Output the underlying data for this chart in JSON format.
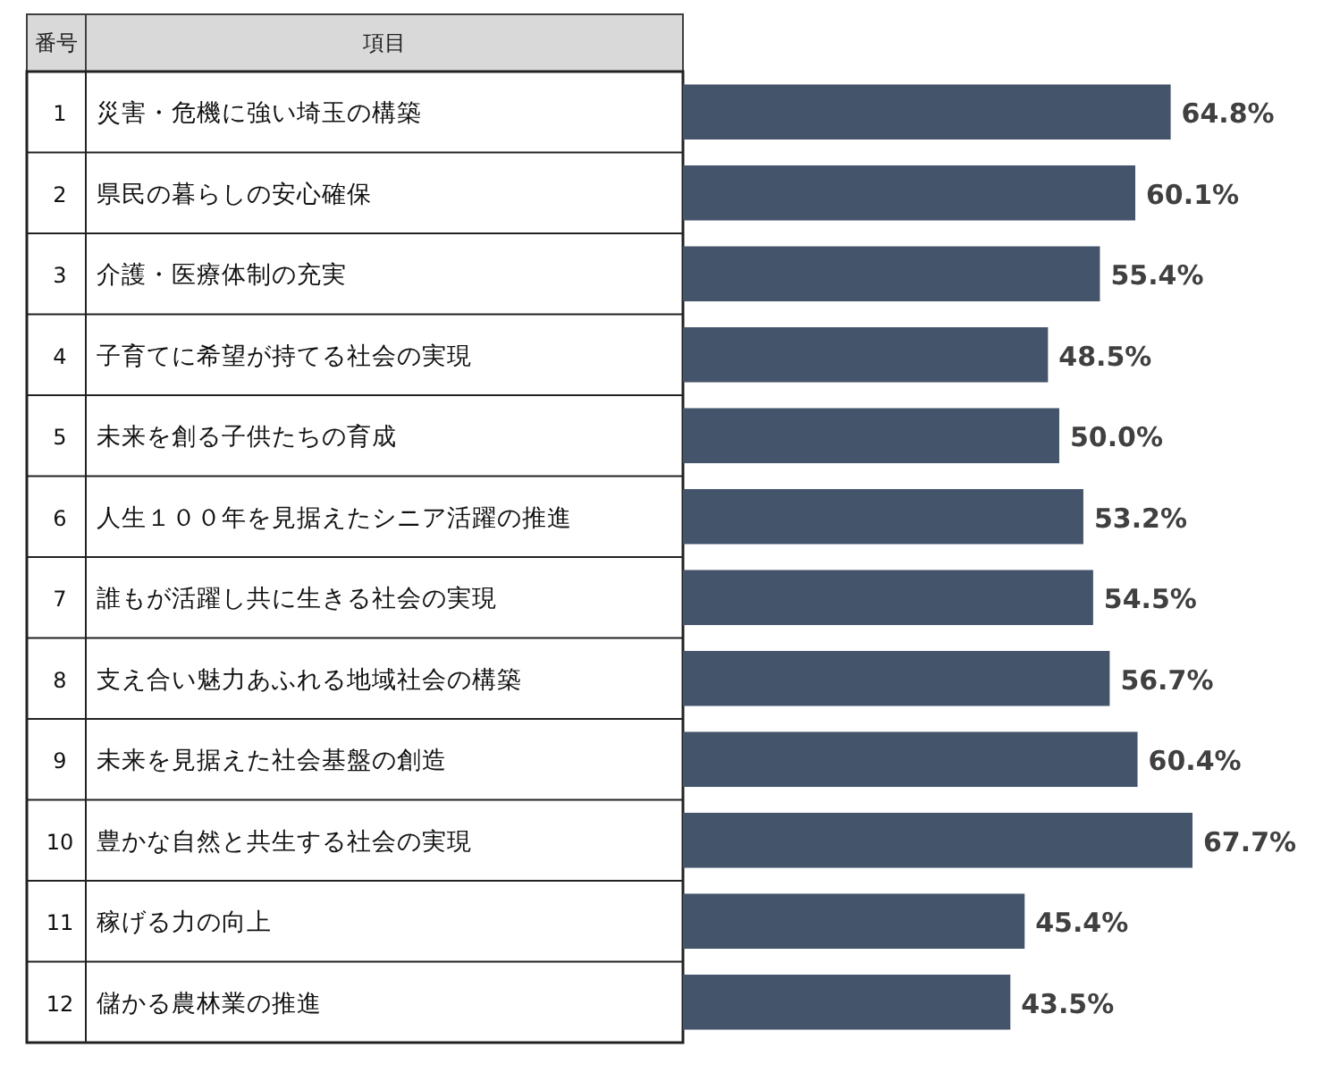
{
  "chart_data": {
    "type": "bar",
    "orientation": "horizontal",
    "categories": [
      "災害・危機に強い埼玉の構築",
      "県民の暮らしの安心確保",
      "介護・医療体制の充実",
      "子育てに希望が持てる社会の実現",
      "未来を創る子供たちの育成",
      "人生１００年を見据えたシニア活躍の推進",
      "誰もが活躍し共に生きる社会の実現",
      "支え合い魅力あふれる地域社会の構築",
      "未来を見据えた社会基盤の創造",
      "豊かな自然と共生する社会の実現",
      "稼げる力の向上",
      "儲かる農林業の推進"
    ],
    "values": [
      64.8,
      60.1,
      55.4,
      48.5,
      50.0,
      53.2,
      54.5,
      56.7,
      60.4,
      67.7,
      45.4,
      43.5
    ],
    "value_labels": [
      "64.8%",
      "60.1%",
      "55.4%",
      "48.5%",
      "50.0%",
      "53.2%",
      "54.5%",
      "56.7%",
      "60.4%",
      "67.7%",
      "45.4%",
      "43.5%"
    ],
    "color": "#44546a",
    "annotations": [
      "番号",
      "項目",
      "1",
      "2",
      "3",
      "4",
      "5",
      "6",
      "7",
      "8",
      "9",
      "10",
      "11",
      "12"
    ]
  }
}
